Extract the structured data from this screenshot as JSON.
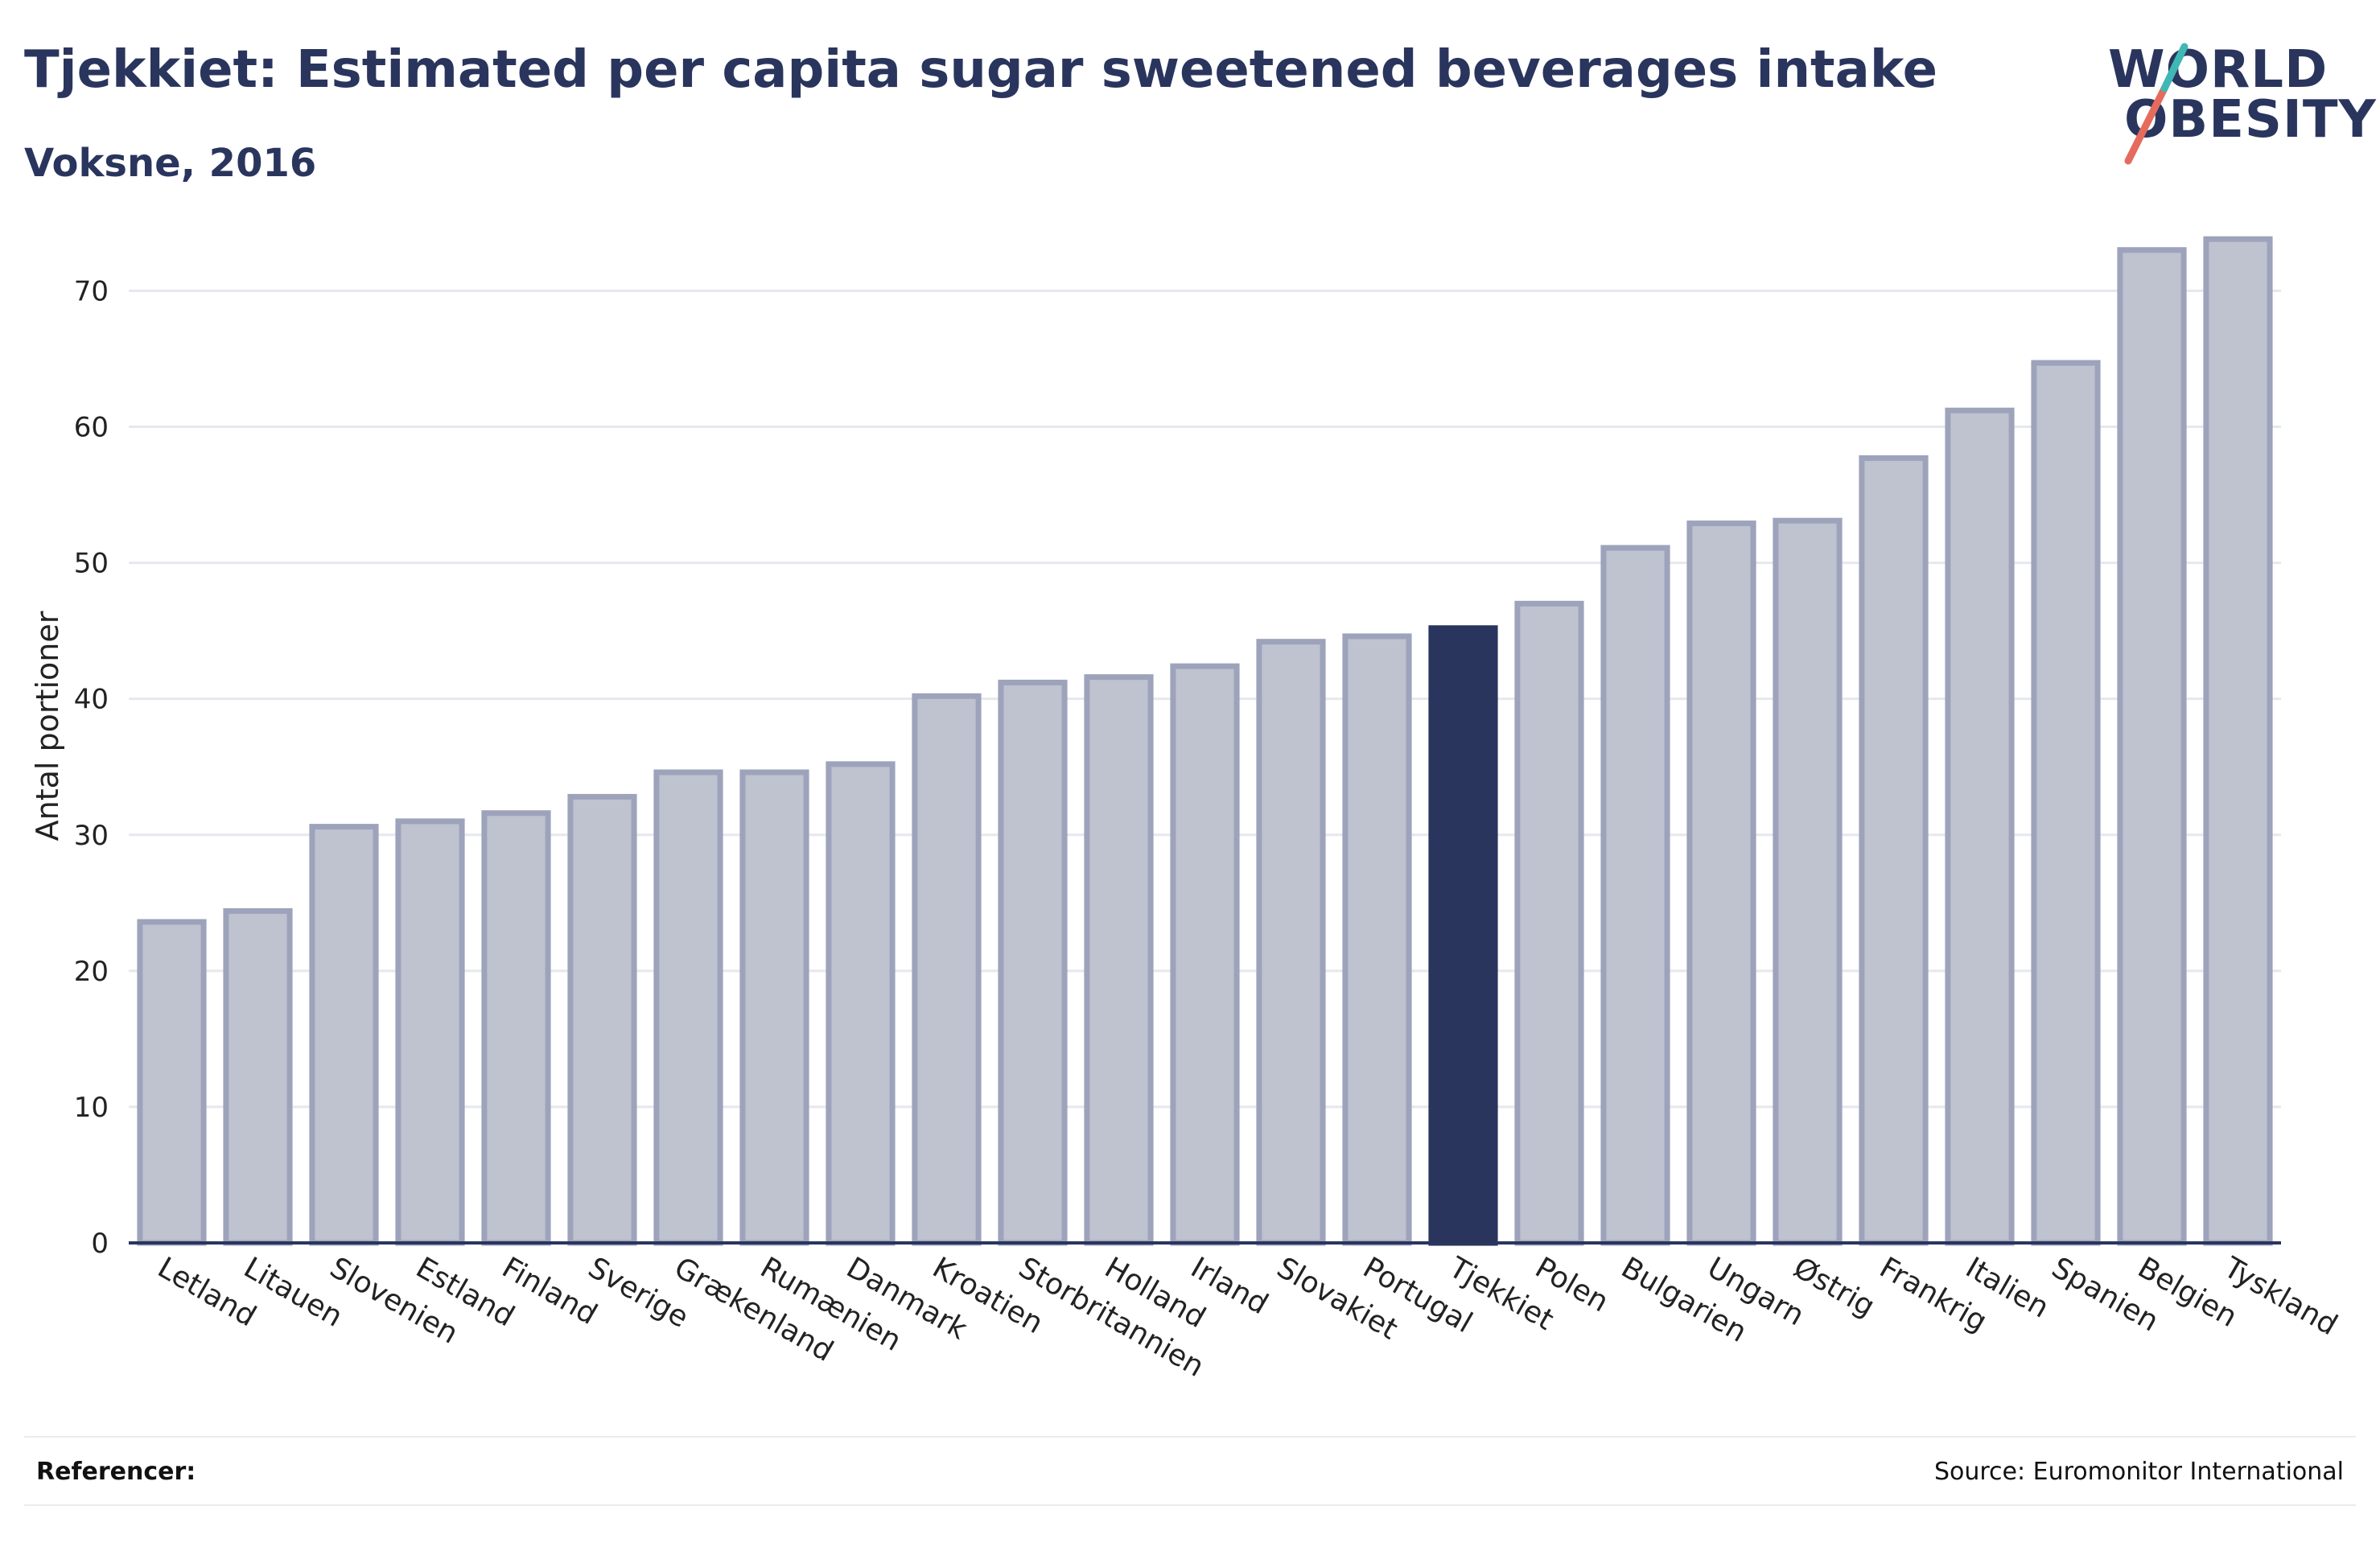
{
  "title": "Tjekkiet: Estimated per capita sugar sweetened beverages intake",
  "subtitle": "Voksne, 2016",
  "logo": {
    "line1": "WORLD",
    "line2": "OBESITY"
  },
  "footer": {
    "references_label": "Referencer:",
    "source": "Source: Euromonitor International"
  },
  "colors": {
    "bar": "#bfc2cf",
    "bar_edge": "#9da3bb",
    "highlight": "#2a355e",
    "grid": "#e6e8ee",
    "title": "#2a355e",
    "logo_slash_red": "#e56b5d",
    "logo_slash_teal": "#3fb8b5"
  },
  "chart_data": {
    "type": "bar",
    "ylabel": "Antal portioner",
    "xlabel": "",
    "ylim": [
      0,
      76
    ],
    "yticks": [
      0,
      10,
      20,
      30,
      40,
      50,
      60,
      70
    ],
    "grid": true,
    "highlight": "Tjekkiet",
    "categories": [
      "Letland",
      "Litauen",
      "Slovenien",
      "Estland",
      "Finland",
      "Sverige",
      "Grækenland",
      "Rumænien",
      "Danmark",
      "Kroatien",
      "Storbritannien",
      "Holland",
      "Irland",
      "Slovakiet",
      "Portugal",
      "Tjekkiet",
      "Polen",
      "Bulgarien",
      "Ungarn",
      "Østrig",
      "Frankrig",
      "Italien",
      "Spanien",
      "Belgien",
      "Tyskland"
    ],
    "values": [
      23.6,
      24.4,
      30.6,
      31.0,
      31.6,
      32.8,
      34.6,
      34.6,
      35.2,
      40.2,
      41.2,
      41.6,
      42.4,
      44.2,
      44.6,
      45.2,
      47.0,
      51.1,
      52.9,
      53.1,
      57.7,
      61.2,
      64.7,
      73.0,
      73.8
    ]
  }
}
